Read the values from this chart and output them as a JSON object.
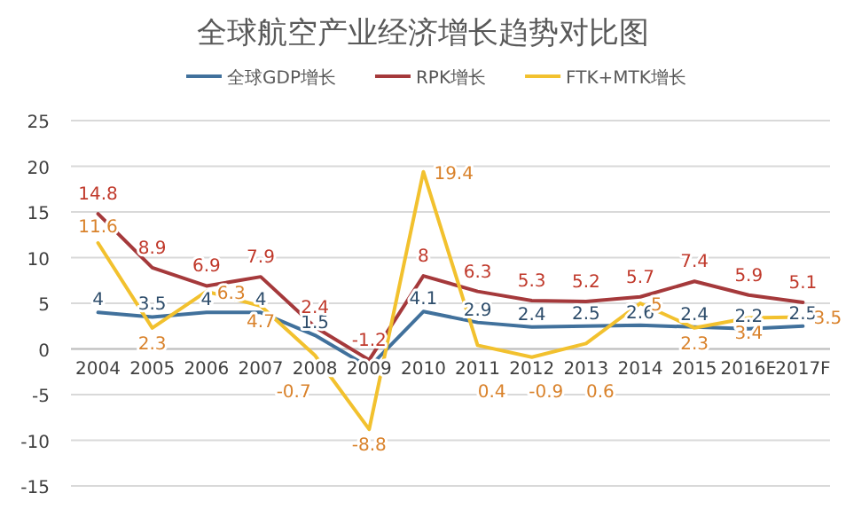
{
  "chart_data": {
    "type": "line",
    "title": "全球航空产业经济增长趋势对比图",
    "categories": [
      "2004",
      "2005",
      "2006",
      "2007",
      "2008",
      "2009",
      "2010",
      "2011",
      "2012",
      "2013",
      "2014",
      "2015",
      "2016E",
      "2017F"
    ],
    "ylim": [
      -15,
      25
    ],
    "yticks": [
      -15,
      -10,
      -5,
      0,
      5,
      10,
      15,
      20,
      25
    ],
    "grid": "y",
    "legend": "top",
    "marker": "none",
    "line_style": "solid",
    "series": [
      {
        "name": "全球GDP增长",
        "color": "#41719c",
        "values": [
          4,
          3.5,
          4,
          4,
          1.5,
          -2,
          4.1,
          2.9,
          2.4,
          2.5,
          2.6,
          2.4,
          2.2,
          2.5
        ],
        "value_labels": [
          "4",
          "3.5",
          "4",
          "4",
          "1.5",
          null,
          "4.1",
          "2.9",
          "2.4",
          "2.5",
          "2.6",
          "2.4",
          "2.2",
          "2.5"
        ]
      },
      {
        "name": "RPK增长",
        "color": "#a5393b",
        "values": [
          14.8,
          8.9,
          6.9,
          7.9,
          2.4,
          -1.2,
          8,
          6.3,
          5.3,
          5.2,
          5.7,
          7.4,
          5.9,
          5.1
        ],
        "value_labels": [
          "14.8",
          "8.9",
          "6.9",
          "7.9",
          "2.4",
          "-1.2",
          "8",
          "6.3",
          "5.3",
          "5.2",
          "5.7",
          "7.4",
          "5.9",
          "5.1"
        ]
      },
      {
        "name": "FTK+MTK增长",
        "color": "#f2c12e",
        "values": [
          11.6,
          2.3,
          6.3,
          4.7,
          -0.7,
          -8.8,
          19.4,
          0.4,
          -0.9,
          0.6,
          5,
          2.3,
          3.4,
          3.5
        ],
        "value_labels": [
          "11.6",
          "2.3",
          "6.3",
          "4.7",
          "-0.7",
          "-8.8",
          "19.4",
          "0.4",
          "-0.9",
          "0.6",
          "5",
          "2.3",
          "3.4",
          "3.5"
        ]
      }
    ]
  }
}
